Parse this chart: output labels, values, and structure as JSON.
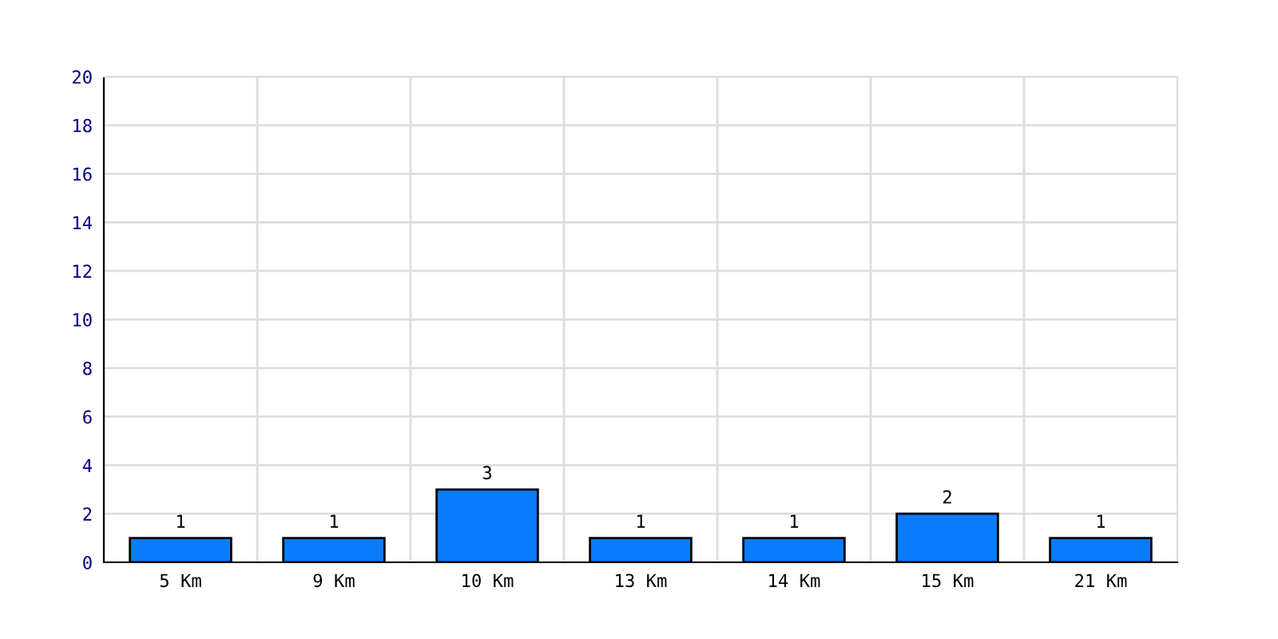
{
  "chart_data": {
    "type": "bar",
    "categories": [
      "5 Km",
      "9 Km",
      "10 Km",
      "13 Km",
      "14 Km",
      "15 Km",
      "21 Km"
    ],
    "values": [
      1,
      1,
      3,
      1,
      1,
      2,
      1
    ],
    "color": "#0a7cff",
    "ylim": [
      0,
      20
    ],
    "yticks": [
      0,
      2,
      4,
      6,
      8,
      10,
      12,
      14,
      16,
      18,
      20
    ],
    "grid": true,
    "data_labels": true
  }
}
